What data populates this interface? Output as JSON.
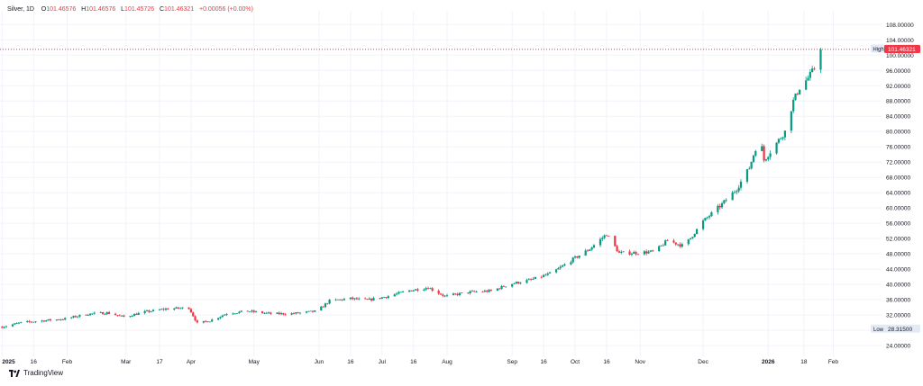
{
  "legend": {
    "symbol": "Silver, 1D",
    "open_key": "O",
    "open": "101.46576",
    "high_key": "H",
    "high": "101.46576",
    "low_key": "L",
    "low": "101.45726",
    "close_key": "C",
    "close": "101.46321",
    "change": "+0.00056 (+0.00%)"
  },
  "brand": {
    "name": "TradingView"
  },
  "colors": {
    "up": "#089981",
    "down": "#f23645",
    "grid": "#f0f3fa",
    "text": "#131722"
  },
  "chart_data": {
    "type": "candlestick",
    "title": "Silver, 1D",
    "y_ticks": [
      "24.00000",
      "28.00000",
      "32.00000",
      "36.00000",
      "40.00000",
      "44.00000",
      "48.00000",
      "52.00000",
      "56.00000",
      "60.00000",
      "64.00000",
      "68.00000",
      "72.00000",
      "76.00000",
      "80.00000",
      "84.00000",
      "88.00000",
      "92.00000",
      "96.00000",
      "100.00000",
      "104.00000",
      "108.00000"
    ],
    "ylim": [
      21.2,
      111.6
    ],
    "x_tick_labels": [
      "2025",
      "16",
      "Feb",
      "Mar",
      "17",
      "Apr",
      "May",
      "Jun",
      "16",
      "Jul",
      "16",
      "Aug",
      "Sep",
      "16",
      "Oct",
      "16",
      "Nov",
      "Dec",
      "2026",
      "18",
      "Feb"
    ],
    "x_tick_dates": [
      "2025-01-01",
      "2025-01-16",
      "2025-02-01",
      "2025-03-01",
      "2025-03-17",
      "2025-04-01",
      "2025-05-01",
      "2025-06-01",
      "2025-06-16",
      "2025-07-01",
      "2025-07-16",
      "2025-08-01",
      "2025-09-01",
      "2025-09-16",
      "2025-10-01",
      "2025-10-16",
      "2025-11-01",
      "2025-12-01",
      "2026-01-01",
      "2026-01-18",
      "2026-02-01"
    ],
    "xlim": [
      "2024-12-31",
      "2026-02-24"
    ],
    "high_label": "High",
    "high_value": "101.62795",
    "high_numeric": 101.62795,
    "low_label": "Low",
    "low_value": "28.31500",
    "low_numeric": 28.315,
    "last_price": "101.46321",
    "last_numeric": 101.46321,
    "close_path": [
      [
        "2025-01-01",
        28.9
      ],
      [
        "2025-01-10",
        30.0
      ],
      [
        "2025-01-20",
        30.5
      ],
      [
        "2025-01-31",
        31.0
      ],
      [
        "2025-02-10",
        32.2
      ],
      [
        "2025-02-20",
        32.6
      ],
      [
        "2025-02-28",
        31.5
      ],
      [
        "2025-03-10",
        32.8
      ],
      [
        "2025-03-20",
        33.6
      ],
      [
        "2025-03-31",
        33.9
      ],
      [
        "2025-04-04",
        29.8
      ],
      [
        "2025-04-10",
        30.5
      ],
      [
        "2025-04-18",
        32.4
      ],
      [
        "2025-04-28",
        33.0
      ],
      [
        "2025-05-10",
        32.3
      ],
      [
        "2025-05-20",
        32.4
      ],
      [
        "2025-05-31",
        33.0
      ],
      [
        "2025-06-06",
        35.7
      ],
      [
        "2025-06-16",
        36.3
      ],
      [
        "2025-06-24",
        35.9
      ],
      [
        "2025-07-03",
        36.8
      ],
      [
        "2025-07-14",
        38.4
      ],
      [
        "2025-07-23",
        39.2
      ],
      [
        "2025-07-31",
        36.9
      ],
      [
        "2025-08-12",
        38.0
      ],
      [
        "2025-08-22",
        38.3
      ],
      [
        "2025-08-31",
        40.1
      ],
      [
        "2025-09-10",
        41.2
      ],
      [
        "2025-09-20",
        43.0
      ],
      [
        "2025-09-30",
        46.6
      ],
      [
        "2025-10-08",
        49.3
      ],
      [
        "2025-10-16",
        53.2
      ],
      [
        "2025-10-22",
        48.2
      ],
      [
        "2025-10-31",
        48.3
      ],
      [
        "2025-11-08",
        48.6
      ],
      [
        "2025-11-14",
        51.5
      ],
      [
        "2025-11-22",
        50.0
      ],
      [
        "2025-12-01",
        56.5
      ],
      [
        "2025-12-10",
        61.0
      ],
      [
        "2025-12-17",
        65.0
      ],
      [
        "2025-12-23",
        70.5
      ],
      [
        "2025-12-28",
        79.0
      ],
      [
        "2025-12-30",
        72.5
      ],
      [
        "2026-01-05",
        77.0
      ],
      [
        "2026-01-09",
        80.0
      ],
      [
        "2026-01-13",
        88.0
      ],
      [
        "2026-01-16",
        91.5
      ],
      [
        "2026-01-20",
        94.0
      ],
      [
        "2026-01-23",
        96.5
      ],
      [
        "2026-01-26",
        101.5
      ]
    ]
  }
}
